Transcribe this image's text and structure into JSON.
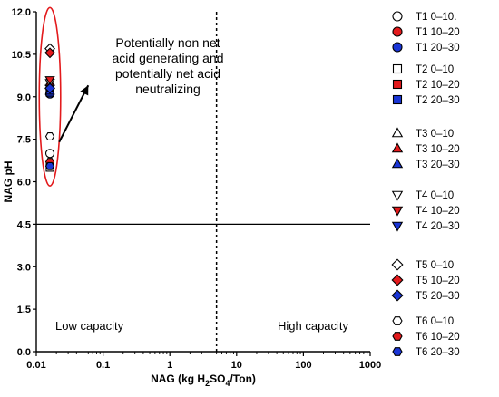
{
  "chart_data": {
    "type": "scatter",
    "x_scale": "log",
    "xlim": [
      0.01,
      1000
    ],
    "ylim": [
      0,
      12
    ],
    "x_ticks": [
      {
        "value": 0.01,
        "label": "0.01"
      },
      {
        "value": 0.1,
        "label": "0.1"
      },
      {
        "value": 1,
        "label": "1"
      },
      {
        "value": 10,
        "label": "10"
      },
      {
        "value": 100,
        "label": "100"
      },
      {
        "value": 1000,
        "label": "1000"
      }
    ],
    "y_ticks": [
      {
        "value": 0,
        "label": "0.0"
      },
      {
        "value": 1.5,
        "label": "1.5"
      },
      {
        "value": 3,
        "label": "3.0"
      },
      {
        "value": 4.5,
        "label": "4.5"
      },
      {
        "value": 6,
        "label": "6.0"
      },
      {
        "value": 7.5,
        "label": "7.5"
      },
      {
        "value": 9,
        "label": "9.0"
      },
      {
        "value": 10.5,
        "label": "10.5"
      },
      {
        "value": 12,
        "label": "12.0"
      }
    ],
    "xlabel": {
      "pre": "NAG (kg H",
      "sub1": "2",
      "mid": "SO",
      "sub2": "4",
      "post": "/Ton)"
    },
    "ylabel": "NAG pH",
    "reference_lines": [
      {
        "axis": "y",
        "value": 4.5,
        "style": "solid"
      },
      {
        "axis": "x",
        "value": 5,
        "style": "dotted"
      }
    ],
    "annotation_lines": [
      "Potentially non net",
      "acid generating and",
      "potentially net acid",
      "neutralizing"
    ],
    "region_labels": {
      "left": "Low capacity",
      "right": "High capacity"
    },
    "ellipse": {
      "cx": 0.016,
      "cy": 9.0,
      "rx_decades": 0.16,
      "ry": 3.15,
      "color": "#e31a1c"
    },
    "arrow": {
      "from": [
        0.022,
        7.4
      ],
      "to": [
        0.06,
        9.4
      ]
    },
    "series": [
      {
        "name": "T1 0–10.",
        "marker": "circle",
        "fill": "#ffffff",
        "x": 0.016,
        "y": 7.0
      },
      {
        "name": "T1 10–20",
        "marker": "circle",
        "fill": "#e31a1c",
        "x": 0.016,
        "y": 9.1
      },
      {
        "name": "T1 20–30",
        "marker": "circle",
        "fill": "#1a35d6",
        "x": 0.016,
        "y": 9.1
      },
      {
        "name": "T2 0–10",
        "marker": "square",
        "fill": "#ffffff",
        "x": 0.016,
        "y": 6.5
      },
      {
        "name": "T2 10–20",
        "marker": "square",
        "fill": "#e31a1c",
        "x": 0.016,
        "y": 9.2
      },
      {
        "name": "T2 20–30",
        "marker": "square",
        "fill": "#1a35d6",
        "x": 0.016,
        "y": 9.15
      },
      {
        "name": "T3 0–10",
        "marker": "triangle-up",
        "fill": "#ffffff",
        "x": 0.016,
        "y": 9.4
      },
      {
        "name": "T3 10–20",
        "marker": "triangle-up",
        "fill": "#e31a1c",
        "x": 0.016,
        "y": 9.5
      },
      {
        "name": "T3 20–30",
        "marker": "triangle-up",
        "fill": "#1a35d6",
        "x": 0.016,
        "y": 9.2
      },
      {
        "name": "T4 0–10",
        "marker": "triangle-down",
        "fill": "#ffffff",
        "x": 0.016,
        "y": 9.5
      },
      {
        "name": "T4 10–20",
        "marker": "triangle-down",
        "fill": "#e31a1c",
        "x": 0.016,
        "y": 9.6
      },
      {
        "name": "T4 20–30",
        "marker": "triangle-down",
        "fill": "#1a35d6",
        "x": 0.016,
        "y": 9.3
      },
      {
        "name": "T5 0–10",
        "marker": "diamond",
        "fill": "#ffffff",
        "x": 0.016,
        "y": 10.7
      },
      {
        "name": "T5 10–20",
        "marker": "diamond",
        "fill": "#e31a1c",
        "x": 0.016,
        "y": 10.55
      },
      {
        "name": "T5 20–30",
        "marker": "diamond",
        "fill": "#1a35d6",
        "x": 0.016,
        "y": 9.3
      },
      {
        "name": "T6 0–10",
        "marker": "hexagon",
        "fill": "#ffffff",
        "x": 0.016,
        "y": 7.6
      },
      {
        "name": "T6 10–20",
        "marker": "hexagon",
        "fill": "#e31a1c",
        "x": 0.016,
        "y": 6.7
      },
      {
        "name": "T6 20–30",
        "marker": "hexagon",
        "fill": "#1a35d6",
        "x": 0.016,
        "y": 6.55
      }
    ]
  }
}
